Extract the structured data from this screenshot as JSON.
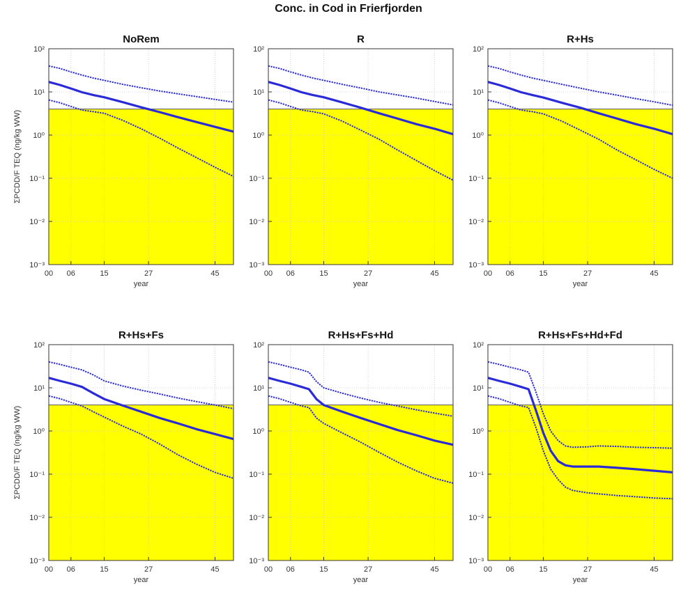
{
  "figure": {
    "title": "Conc. in Cod in Frierfjorden"
  },
  "chart_data": [
    {
      "type": "line",
      "title": "NoRem",
      "xlabel": "year",
      "ylabel": "ΣPCDD/F TEQ (ng/kg WW)",
      "yscale": "log",
      "ylim": [
        0.001,
        100
      ],
      "xlim": [
        0,
        50
      ],
      "x_ticks": [
        "00",
        "06",
        "15",
        "27",
        "45"
      ],
      "y_ticks": [
        "10⁻³",
        "10⁻²",
        "10⁻¹",
        "10⁰",
        "10¹",
        "10²"
      ],
      "grid": true,
      "threshold": 4,
      "threshold_color": "#ffff00",
      "series": [
        {
          "x": [
            0,
            3,
            6,
            9,
            12,
            15,
            20,
            25,
            30,
            35,
            40,
            45,
            50
          ],
          "y": [
            40,
            35,
            29,
            24.5,
            21,
            18.5,
            15,
            12.5,
            10.5,
            9,
            7.8,
            6.7,
            5.8
          ]
        },
        {
          "x": [
            0,
            3,
            6,
            9,
            12,
            15,
            20,
            25,
            30,
            35,
            40,
            45,
            50
          ],
          "y": [
            17,
            14.5,
            12,
            9.8,
            8.5,
            7.5,
            5.8,
            4.4,
            3.4,
            2.6,
            2,
            1.55,
            1.2
          ]
        },
        {
          "x": [
            0,
            3,
            6,
            9,
            12,
            15,
            20,
            25,
            30,
            35,
            40,
            45,
            50
          ],
          "y": [
            6.5,
            5.6,
            4.6,
            3.8,
            3.5,
            3.2,
            2.2,
            1.4,
            0.85,
            0.5,
            0.3,
            0.18,
            0.11
          ]
        }
      ]
    },
    {
      "type": "line",
      "title": "R",
      "xlabel": "year",
      "ylabel": "",
      "yscale": "log",
      "ylim": [
        0.001,
        100
      ],
      "xlim": [
        0,
        50
      ],
      "x_ticks": [
        "00",
        "06",
        "15",
        "27",
        "45"
      ],
      "y_ticks": [
        "10⁻³",
        "10⁻²",
        "10⁻¹",
        "10⁰",
        "10¹",
        "10²"
      ],
      "grid": true,
      "threshold": 4,
      "threshold_color": "#ffff00",
      "series": [
        {
          "x": [
            0,
            3,
            6,
            9,
            12,
            15,
            20,
            25,
            30,
            35,
            40,
            45,
            50
          ],
          "y": [
            40,
            35,
            29,
            24.5,
            21,
            18.5,
            15,
            12.3,
            10,
            8.5,
            7.2,
            6,
            5
          ]
        },
        {
          "x": [
            0,
            3,
            6,
            9,
            12,
            15,
            20,
            25,
            30,
            35,
            40,
            45,
            50
          ],
          "y": [
            17,
            14.5,
            12,
            9.8,
            8.5,
            7.5,
            5.7,
            4.3,
            3.2,
            2.4,
            1.8,
            1.4,
            1.05
          ]
        },
        {
          "x": [
            0,
            3,
            6,
            9,
            12,
            15,
            20,
            25,
            30,
            35,
            40,
            45,
            50
          ],
          "y": [
            6.5,
            5.6,
            4.6,
            3.8,
            3.5,
            3.1,
            2.1,
            1.3,
            0.8,
            0.45,
            0.26,
            0.15,
            0.09
          ]
        }
      ]
    },
    {
      "type": "line",
      "title": "R+Hs",
      "xlabel": "year",
      "ylabel": "",
      "yscale": "log",
      "ylim": [
        0.001,
        100
      ],
      "xlim": [
        0,
        50
      ],
      "x_ticks": [
        "00",
        "06",
        "15",
        "27",
        "45"
      ],
      "y_ticks": [
        "10⁻³",
        "10⁻²",
        "10⁻¹",
        "10⁰",
        "10¹",
        "10²"
      ],
      "grid": true,
      "threshold": 4,
      "threshold_color": "#ffff00",
      "series": [
        {
          "x": [
            0,
            3,
            6,
            9,
            12,
            15,
            20,
            25,
            30,
            35,
            40,
            45,
            50
          ],
          "y": [
            40,
            35,
            29,
            24.5,
            21,
            18.5,
            15,
            12.2,
            10,
            8.4,
            7,
            5.9,
            4.9
          ]
        },
        {
          "x": [
            0,
            3,
            6,
            9,
            12,
            15,
            20,
            25,
            30,
            35,
            40,
            45,
            50
          ],
          "y": [
            17,
            14.5,
            12,
            9.8,
            8.5,
            7.4,
            5.6,
            4.3,
            3.2,
            2.4,
            1.8,
            1.4,
            1.05
          ]
        },
        {
          "x": [
            0,
            3,
            6,
            9,
            12,
            15,
            20,
            25,
            30,
            35,
            40,
            45,
            50
          ],
          "y": [
            6.5,
            5.6,
            4.6,
            3.8,
            3.5,
            3.1,
            2.1,
            1.3,
            0.8,
            0.45,
            0.27,
            0.16,
            0.1
          ]
        }
      ]
    },
    {
      "type": "line",
      "title": "R+Hs+Fs",
      "xlabel": "year",
      "ylabel": "ΣPCDD/F TEQ (ng/kg WW)",
      "yscale": "log",
      "ylim": [
        0.001,
        100
      ],
      "xlim": [
        0,
        50
      ],
      "x_ticks": [
        "00",
        "06",
        "15",
        "27",
        "45"
      ],
      "y_ticks": [
        "10⁻³",
        "10⁻²",
        "10⁻¹",
        "10⁰",
        "10¹",
        "10²"
      ],
      "grid": true,
      "threshold": 4,
      "threshold_color": "#ffff00",
      "series": [
        {
          "x": [
            0,
            3,
            6,
            9,
            12,
            15,
            20,
            25,
            30,
            35,
            40,
            45,
            50
          ],
          "y": [
            40,
            35,
            30,
            26,
            20,
            14.5,
            11,
            8.8,
            7.2,
            5.8,
            4.8,
            4,
            3.3
          ]
        },
        {
          "x": [
            0,
            3,
            6,
            9,
            12,
            15,
            20,
            25,
            30,
            35,
            40,
            45,
            50
          ],
          "y": [
            17,
            14.5,
            12.5,
            10.5,
            7.5,
            5.5,
            3.9,
            2.8,
            2,
            1.5,
            1.1,
            0.85,
            0.65
          ]
        },
        {
          "x": [
            0,
            3,
            6,
            9,
            12,
            15,
            20,
            25,
            30,
            35,
            40,
            45,
            50
          ],
          "y": [
            6.5,
            5.6,
            4.6,
            3.8,
            2.8,
            2.1,
            1.3,
            0.85,
            0.5,
            0.28,
            0.17,
            0.11,
            0.08
          ]
        }
      ]
    },
    {
      "type": "line",
      "title": "R+Hs+Fs+Hd",
      "xlabel": "year",
      "ylabel": "",
      "yscale": "log",
      "ylim": [
        0.001,
        100
      ],
      "xlim": [
        0,
        50
      ],
      "x_ticks": [
        "00",
        "06",
        "15",
        "27",
        "45"
      ],
      "y_ticks": [
        "10⁻³",
        "10⁻²",
        "10⁻¹",
        "10⁰",
        "10¹",
        "10²"
      ],
      "grid": true,
      "threshold": 4,
      "threshold_color": "#ffff00",
      "series": [
        {
          "x": [
            0,
            3,
            6,
            9,
            11,
            13,
            15,
            20,
            25,
            30,
            35,
            40,
            45,
            50
          ],
          "y": [
            40,
            35,
            30,
            26,
            23,
            14,
            10,
            7.5,
            5.8,
            4.6,
            3.8,
            3.1,
            2.6,
            2.2
          ]
        },
        {
          "x": [
            0,
            3,
            6,
            9,
            11,
            13,
            15,
            20,
            25,
            30,
            35,
            40,
            45,
            50
          ],
          "y": [
            17,
            14.5,
            12.5,
            10.5,
            9.3,
            5.5,
            4,
            2.8,
            2,
            1.45,
            1.05,
            0.8,
            0.6,
            0.48
          ]
        },
        {
          "x": [
            0,
            3,
            6,
            9,
            11,
            13,
            15,
            20,
            25,
            30,
            35,
            40,
            45,
            50
          ],
          "y": [
            6.5,
            5.6,
            4.6,
            3.8,
            3.5,
            2,
            1.5,
            0.9,
            0.55,
            0.32,
            0.19,
            0.12,
            0.08,
            0.062
          ]
        }
      ]
    },
    {
      "type": "line",
      "title": "R+Hs+Fs+Hd+Fd",
      "xlabel": "year",
      "ylabel": "",
      "yscale": "log",
      "ylim": [
        0.001,
        100
      ],
      "xlim": [
        0,
        50
      ],
      "x_ticks": [
        "00",
        "06",
        "15",
        "27",
        "45"
      ],
      "y_ticks": [
        "10⁻³",
        "10⁻²",
        "10⁻¹",
        "10⁰",
        "10¹",
        "10²"
      ],
      "grid": true,
      "threshold": 4,
      "threshold_color": "#ffff00",
      "series": [
        {
          "x": [
            0,
            3,
            6,
            9,
            11,
            13,
            15,
            17,
            19,
            21,
            23,
            27,
            30,
            35,
            40,
            45,
            50
          ],
          "y": [
            40,
            35,
            30,
            26,
            23,
            8,
            2.5,
            1,
            0.6,
            0.45,
            0.42,
            0.43,
            0.45,
            0.44,
            0.42,
            0.41,
            0.4
          ]
        },
        {
          "x": [
            0,
            3,
            6,
            9,
            11,
            13,
            15,
            17,
            19,
            21,
            23,
            27,
            30,
            35,
            40,
            45,
            50
          ],
          "y": [
            17,
            14.5,
            12.5,
            10.5,
            9.3,
            3,
            0.9,
            0.35,
            0.2,
            0.16,
            0.15,
            0.15,
            0.15,
            0.14,
            0.13,
            0.12,
            0.11
          ]
        },
        {
          "x": [
            0,
            3,
            6,
            9,
            11,
            13,
            15,
            17,
            19,
            21,
            23,
            27,
            30,
            35,
            40,
            45,
            50
          ],
          "y": [
            6.5,
            5.6,
            4.6,
            3.8,
            3.5,
            1.2,
            0.35,
            0.13,
            0.075,
            0.05,
            0.042,
            0.037,
            0.035,
            0.032,
            0.03,
            0.028,
            0.027
          ]
        }
      ]
    }
  ]
}
